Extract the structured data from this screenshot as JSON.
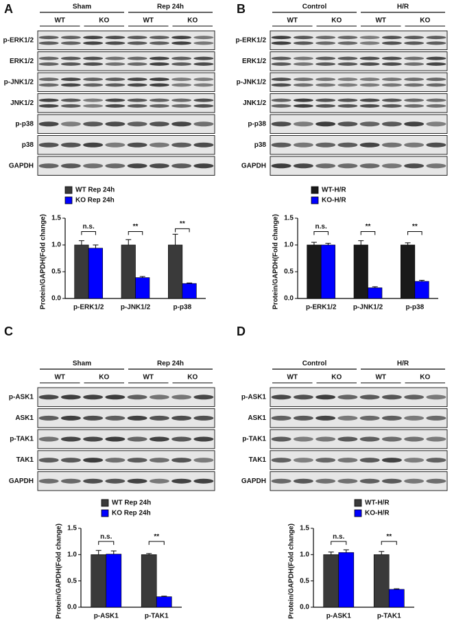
{
  "panels": [
    {
      "label": "A",
      "groups": [
        "Sham",
        "Rep 24h"
      ],
      "subgroups": [
        "WT",
        "KO",
        "WT",
        "KO"
      ],
      "rows": [
        "p-ERK1/2",
        "ERK1/2",
        "p-JNK1/2",
        "JNK1/2",
        "p-p38",
        "p38",
        "GAPDH"
      ]
    },
    {
      "label": "B",
      "groups": [
        "Control",
        "H/R"
      ],
      "subgroups": [
        "WT",
        "KO",
        "WT",
        "KO"
      ],
      "rows": [
        "p-ERK1/2",
        "ERK1/2",
        "p-JNK1/2",
        "JNK1/2",
        "p-p38",
        "p38",
        "GAPDH"
      ]
    },
    {
      "label": "C",
      "groups": [
        "Sham",
        "Rep 24h"
      ],
      "subgroups": [
        "WT",
        "KO",
        "WT",
        "KO"
      ],
      "rows": [
        "p-ASK1",
        "ASK1",
        "p-TAK1",
        "TAK1",
        "GAPDH"
      ]
    },
    {
      "label": "D",
      "groups": [
        "Control",
        "H/R"
      ],
      "subgroups": [
        "WT",
        "KO",
        "WT",
        "KO"
      ],
      "rows": [
        "p-ASK1",
        "ASK1",
        "p-TAK1",
        "TAK1",
        "GAPDH"
      ]
    }
  ],
  "chart_data": [
    {
      "type": "bar",
      "ylabel": "Protein/GAPDH(Fold change)",
      "categories": [
        "p-ERK1/2",
        "p-JNK1/2",
        "p-p38"
      ],
      "series": [
        {
          "name": "WT Rep 24h",
          "color": "#3a3a3a",
          "values": [
            1.0,
            1.0,
            1.0
          ],
          "errors": [
            0.08,
            0.1,
            0.2
          ]
        },
        {
          "name": "KO Rep 24h",
          "color": "#0000ff",
          "values": [
            0.94,
            0.39,
            0.28
          ],
          "errors": [
            0.06,
            0.02,
            0.01
          ]
        }
      ],
      "significance": [
        "n.s.",
        "**",
        "**"
      ],
      "ylim": [
        0,
        1.5
      ],
      "yticks": [
        {
          "value": 0,
          "label": "0.0"
        },
        {
          "value": 0.5,
          "label": "0.5"
        },
        {
          "value": 1,
          "label": "1.0"
        },
        {
          "value": 1.5,
          "label": "1.5"
        }
      ]
    },
    {
      "type": "bar",
      "ylabel": "Protein/GAPDH(Fold change)",
      "categories": [
        "p-ERK1/2",
        "p-JNK1/2",
        "p-p38"
      ],
      "series": [
        {
          "name": "WT-H/R",
          "color": "#1a1a1a",
          "values": [
            1.0,
            1.0,
            1.0
          ],
          "errors": [
            0.05,
            0.08,
            0.04
          ]
        },
        {
          "name": "KO-H/R",
          "color": "#0000ff",
          "values": [
            1.0,
            0.2,
            0.32
          ],
          "errors": [
            0.03,
            0.02,
            0.02
          ]
        }
      ],
      "significance": [
        "n.s.",
        "**",
        "**"
      ],
      "ylim": [
        0,
        1.5
      ],
      "yticks": [
        {
          "value": 0,
          "label": "0.0"
        },
        {
          "value": 0.5,
          "label": "0.5"
        },
        {
          "value": 1,
          "label": "1.0"
        },
        {
          "value": 1.5,
          "label": "1.5"
        }
      ]
    },
    {
      "type": "bar",
      "ylabel": "Protein/GAPDH(Fold change)",
      "categories": [
        "p-ASK1",
        "p-TAK1"
      ],
      "series": [
        {
          "name": "WT Rep 24h",
          "color": "#3a3a3a",
          "values": [
            1.0,
            1.0
          ],
          "errors": [
            0.08,
            0.02
          ]
        },
        {
          "name": "KO Rep 24h",
          "color": "#0000ff",
          "values": [
            1.01,
            0.2
          ],
          "errors": [
            0.06,
            0.01
          ]
        }
      ],
      "significance": [
        "n.s.",
        "**"
      ],
      "ylim": [
        0,
        1.5
      ],
      "yticks": [
        {
          "value": 0,
          "label": "0.0"
        },
        {
          "value": 0.5,
          "label": "0.5"
        },
        {
          "value": 1,
          "label": "1.0"
        },
        {
          "value": 1.5,
          "label": "1.5"
        }
      ]
    },
    {
      "type": "bar",
      "ylabel": "Protein/GAPDH(Fold change)",
      "categories": [
        "p-ASK1",
        "p-TAK1"
      ],
      "series": [
        {
          "name": "WT-H/R",
          "color": "#3a3a3a",
          "values": [
            1.0,
            1.0
          ],
          "errors": [
            0.05,
            0.06
          ]
        },
        {
          "name": "KO-H/R",
          "color": "#0000ff",
          "values": [
            1.04,
            0.34
          ],
          "errors": [
            0.05,
            0.01
          ]
        }
      ],
      "significance": [
        "n.s.",
        "**"
      ],
      "ylim": [
        0,
        1.5
      ],
      "yticks": [
        {
          "value": 0,
          "label": "0.0"
        },
        {
          "value": 0.5,
          "label": "0.5"
        },
        {
          "value": 1,
          "label": "1.0"
        },
        {
          "value": 1.5,
          "label": "1.5"
        }
      ]
    }
  ]
}
